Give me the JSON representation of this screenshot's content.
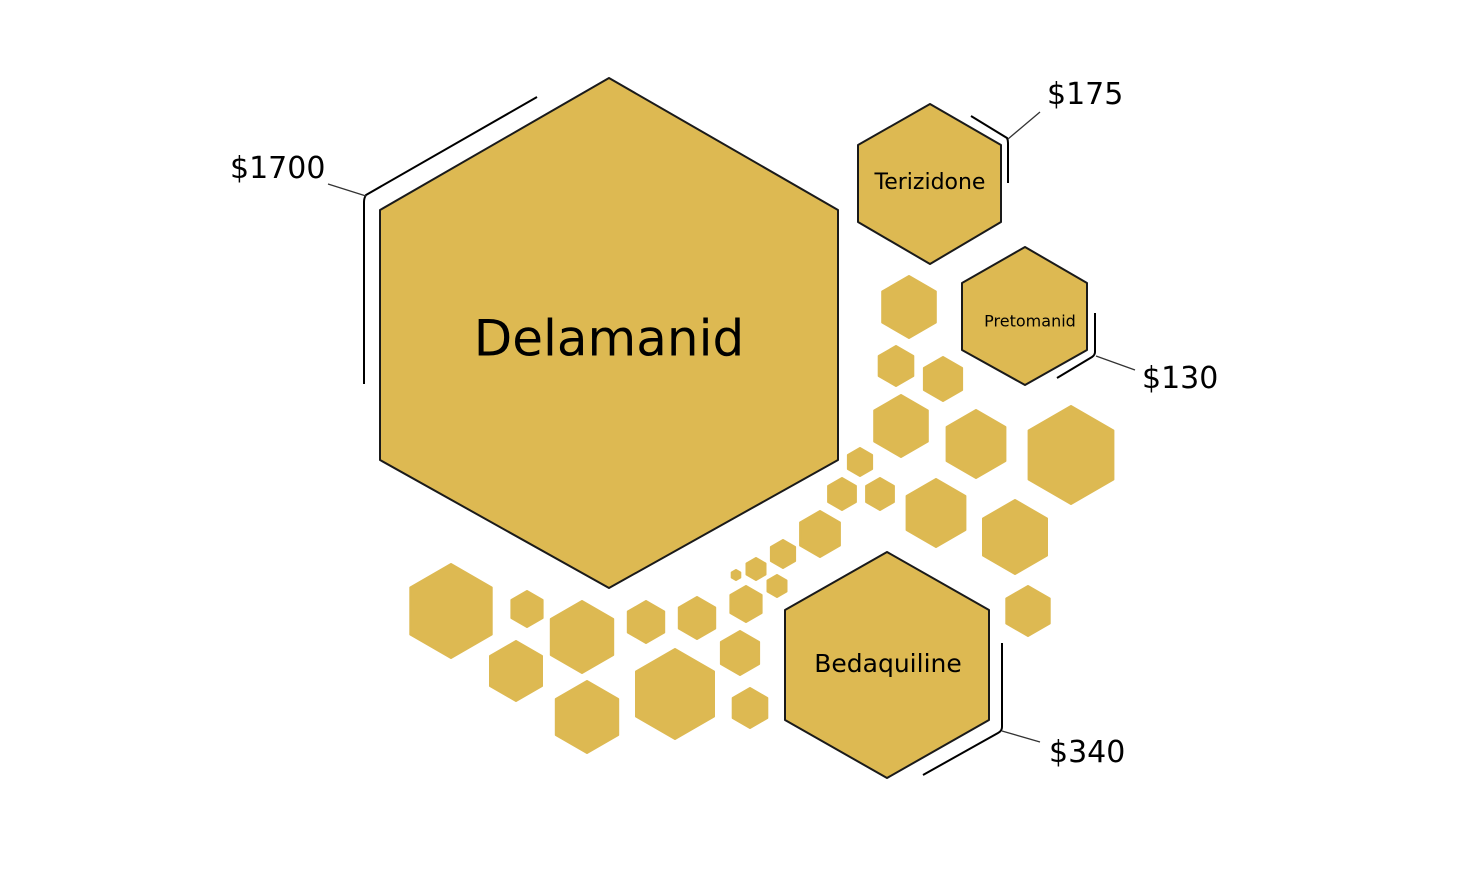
{
  "colors": {
    "hex_fill": "#DDB952",
    "hex_stroke": "#1a1a1a",
    "text": "#000000",
    "background": "#ffffff"
  },
  "drugs": [
    {
      "name": "Delamanid",
      "price": "$1700"
    },
    {
      "name": "Terizidone",
      "price": "$175"
    },
    {
      "name": "Pretomanid",
      "price": "$130"
    },
    {
      "name": "Bedaquiline",
      "price": "$340"
    }
  ]
}
